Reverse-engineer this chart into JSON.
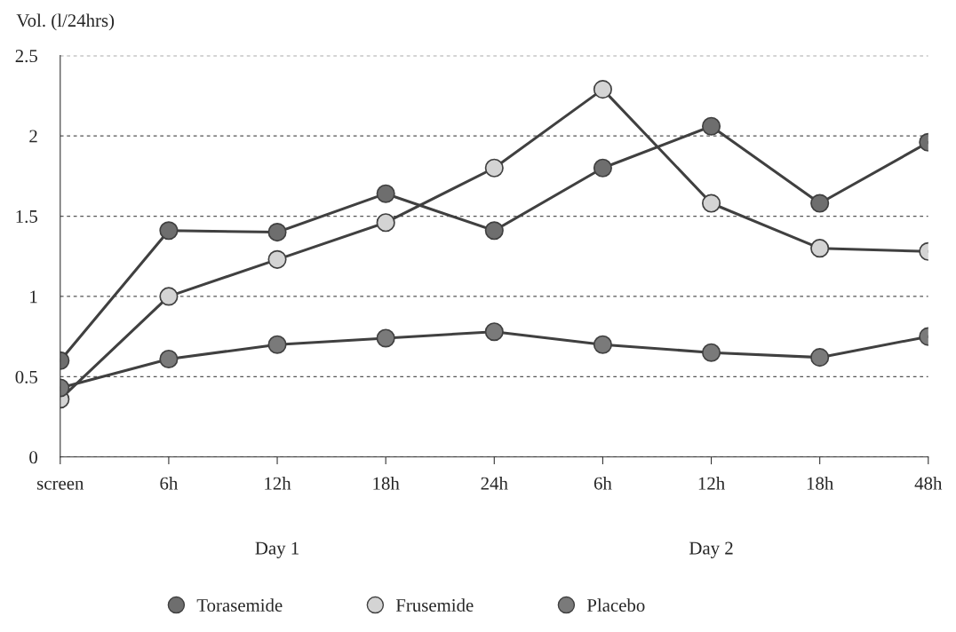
{
  "chart_data": {
    "type": "line",
    "ylabel": "Vol. (l/24hrs)",
    "categories": [
      "screen",
      "6h",
      "12h",
      "18h",
      "24h",
      "6h",
      "12h",
      "18h",
      "48h"
    ],
    "series": [
      {
        "name": "Torasemide",
        "color": "#6e6e6e",
        "values": [
          0.6,
          1.41,
          1.4,
          1.64,
          1.41,
          1.8,
          2.06,
          1.58,
          1.96
        ]
      },
      {
        "name": "Frusemide",
        "color": "#d4d4d4",
        "values": [
          0.36,
          1.0,
          1.23,
          1.46,
          1.8,
          2.29,
          1.58,
          1.3,
          1.28
        ]
      },
      {
        "name": "Placebo",
        "color": "#7a7a7a",
        "values": [
          0.43,
          0.61,
          0.7,
          0.74,
          0.78,
          0.7,
          0.65,
          0.62,
          0.75
        ]
      }
    ],
    "annotations": [
      "Day 1",
      "Day 2"
    ],
    "ylim": [
      0,
      2.5
    ],
    "yticks": [
      0,
      0.5,
      1,
      1.5,
      2,
      2.5
    ],
    "grid": "y",
    "legend": "bottom",
    "marker": "circle",
    "line_style": "solid"
  }
}
